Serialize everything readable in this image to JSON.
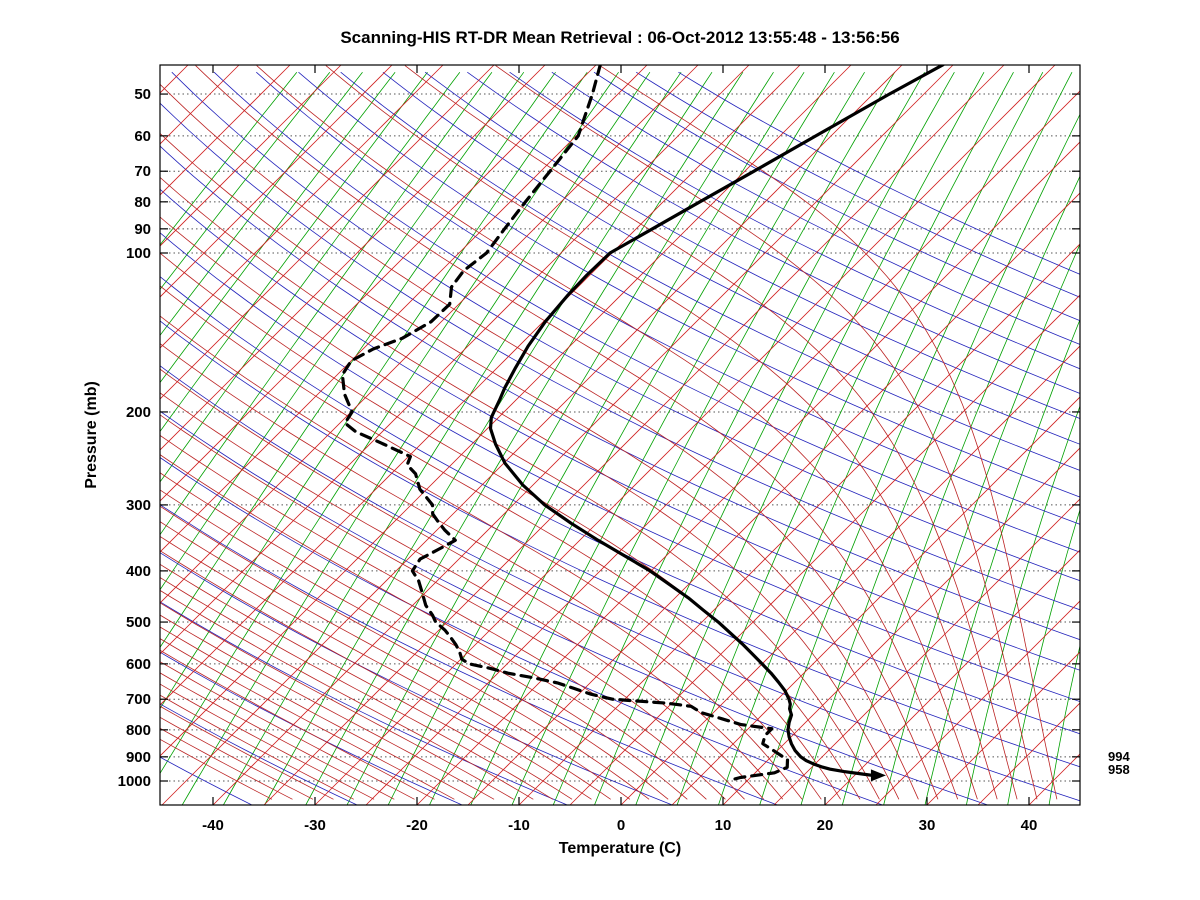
{
  "chart_data": {
    "type": "line",
    "chart_kind": "skew-t-log-p-sounding",
    "title": "Scanning-HIS RT-DR Mean Retrieval : 06-Oct-2012 13:55:48 - 13:56:56",
    "xlabel": "Temperature (C)",
    "ylabel": "Pressure (mb)",
    "x_ticks": [
      -40,
      -30,
      -20,
      -10,
      0,
      10,
      20,
      30,
      40
    ],
    "y_ticks": [
      50,
      60,
      70,
      80,
      90,
      100,
      200,
      300,
      400,
      500,
      600,
      700,
      800,
      900,
      1000
    ],
    "xlim": [
      -45,
      45
    ],
    "pressure_lim_mb": [
      44,
      1115
    ],
    "grid": "dotted-horizontal-at-pressure-ticks",
    "background_lines": {
      "grid_color": "#555555",
      "isotherms": {
        "color": "#d02020",
        "range_C": [
          -120,
          45
        ],
        "step_C": 5
      },
      "dry_adiabats": {
        "color": "#2222bb",
        "theta_K_range": [
          220,
          500
        ],
        "step_K": 10
      },
      "moist_adiabats": {
        "color": "#bb2222",
        "thetaw_C_range": [
          -40,
          40
        ],
        "step_C": 2
      },
      "mixing_ratio_lines": {
        "color": "#00a000",
        "dewpoint_at_1000mb_range_C": [
          -88,
          40
        ],
        "step_C": 4
      }
    },
    "right_labels": [
      {
        "text": "994",
        "pressure_mb": 900
      },
      {
        "text": "958",
        "pressure_mb": 953
      }
    ],
    "series": [
      {
        "name": "temperature",
        "line_style": "solid",
        "color": "#000000",
        "width": 3.2,
        "end_marker": "arrow-right",
        "points_p_T": [
          [
            44,
            -41.0
          ],
          [
            50,
            -43.4
          ],
          [
            60,
            -46.5
          ],
          [
            70,
            -49.1
          ],
          [
            80,
            -51.4
          ],
          [
            90,
            -53.4
          ],
          [
            100,
            -55.2
          ],
          [
            110,
            -55.3
          ],
          [
            120,
            -55.2
          ],
          [
            135,
            -54.8
          ],
          [
            150,
            -54.1
          ],
          [
            165,
            -53.2
          ],
          [
            180,
            -52.3
          ],
          [
            190,
            -51.6
          ],
          [
            200,
            -51.0
          ],
          [
            205,
            -50.7
          ],
          [
            215,
            -49.7
          ],
          [
            230,
            -47.7
          ],
          [
            250,
            -44.9
          ],
          [
            275,
            -41.0
          ],
          [
            300,
            -36.9
          ],
          [
            325,
            -32.5
          ],
          [
            350,
            -28.2
          ],
          [
            375,
            -24.0
          ],
          [
            400,
            -20.1
          ],
          [
            425,
            -16.8
          ],
          [
            450,
            -13.7
          ],
          [
            475,
            -11.0
          ],
          [
            500,
            -8.4
          ],
          [
            525,
            -6.1
          ],
          [
            550,
            -3.9
          ],
          [
            575,
            -1.9
          ],
          [
            600,
            0.0
          ],
          [
            625,
            1.8
          ],
          [
            650,
            3.4
          ],
          [
            675,
            4.9
          ],
          [
            700,
            6.1
          ],
          [
            715,
            6.7
          ],
          [
            730,
            7.1
          ],
          [
            750,
            7.9
          ],
          [
            775,
            8.4
          ],
          [
            800,
            9.0
          ],
          [
            825,
            9.8
          ],
          [
            850,
            10.7
          ],
          [
            875,
            11.7
          ],
          [
            900,
            12.9
          ],
          [
            915,
            13.8
          ],
          [
            930,
            15.0
          ],
          [
            940,
            15.9
          ],
          [
            950,
            17.0
          ],
          [
            960,
            18.6
          ],
          [
            970,
            20.6
          ],
          [
            976,
            21.8
          ]
        ]
      },
      {
        "name": "dewpoint",
        "line_style": "dashed",
        "color": "#000000",
        "width": 3.2,
        "points_p_T": [
          [
            44,
            -74.6
          ],
          [
            50,
            -72.5
          ],
          [
            60,
            -69.8
          ],
          [
            70,
            -69.1
          ],
          [
            80,
            -68.5
          ],
          [
            90,
            -67.9
          ],
          [
            100,
            -67.3
          ],
          [
            108,
            -67.8
          ],
          [
            116,
            -67.4
          ],
          [
            125,
            -65.9
          ],
          [
            135,
            -66.0
          ],
          [
            145,
            -67.2
          ],
          [
            152,
            -69.0
          ],
          [
            160,
            -70.0
          ],
          [
            170,
            -69.5
          ],
          [
            185,
            -67.4
          ],
          [
            200,
            -64.9
          ],
          [
            210,
            -64.5
          ],
          [
            218,
            -62.6
          ],
          [
            230,
            -58.7
          ],
          [
            243,
            -54.8
          ],
          [
            252,
            -54.3
          ],
          [
            262,
            -52.6
          ],
          [
            280,
            -50.7
          ],
          [
            300,
            -47.9
          ],
          [
            312,
            -47.0
          ],
          [
            322,
            -45.8
          ],
          [
            335,
            -44.2
          ],
          [
            350,
            -42.2
          ],
          [
            365,
            -43.0
          ],
          [
            380,
            -43.8
          ],
          [
            400,
            -43.4
          ],
          [
            418,
            -41.8
          ],
          [
            440,
            -40.3
          ],
          [
            465,
            -38.7
          ],
          [
            485,
            -37.1
          ],
          [
            500,
            -36.1
          ],
          [
            518,
            -34.4
          ],
          [
            535,
            -33.1
          ],
          [
            552,
            -31.9
          ],
          [
            570,
            -30.8
          ],
          [
            588,
            -29.9
          ],
          [
            600,
            -28.7
          ],
          [
            612,
            -26.2
          ],
          [
            625,
            -24.0
          ],
          [
            638,
            -21.0
          ],
          [
            652,
            -18.2
          ],
          [
            668,
            -16.0
          ],
          [
            685,
            -13.8
          ],
          [
            700,
            -11.2
          ],
          [
            712,
            -5.6
          ],
          [
            722,
            -2.8
          ],
          [
            742,
            -1.2
          ],
          [
            762,
            1.4
          ],
          [
            782,
            3.9
          ],
          [
            796,
            7.3
          ],
          [
            820,
            7.3
          ],
          [
            850,
            7.9
          ],
          [
            880,
            9.9
          ],
          [
            912,
            11.9
          ],
          [
            942,
            12.6
          ],
          [
            965,
            11.9
          ],
          [
            985,
            9.0
          ],
          [
            996,
            8.3
          ]
        ]
      }
    ]
  }
}
